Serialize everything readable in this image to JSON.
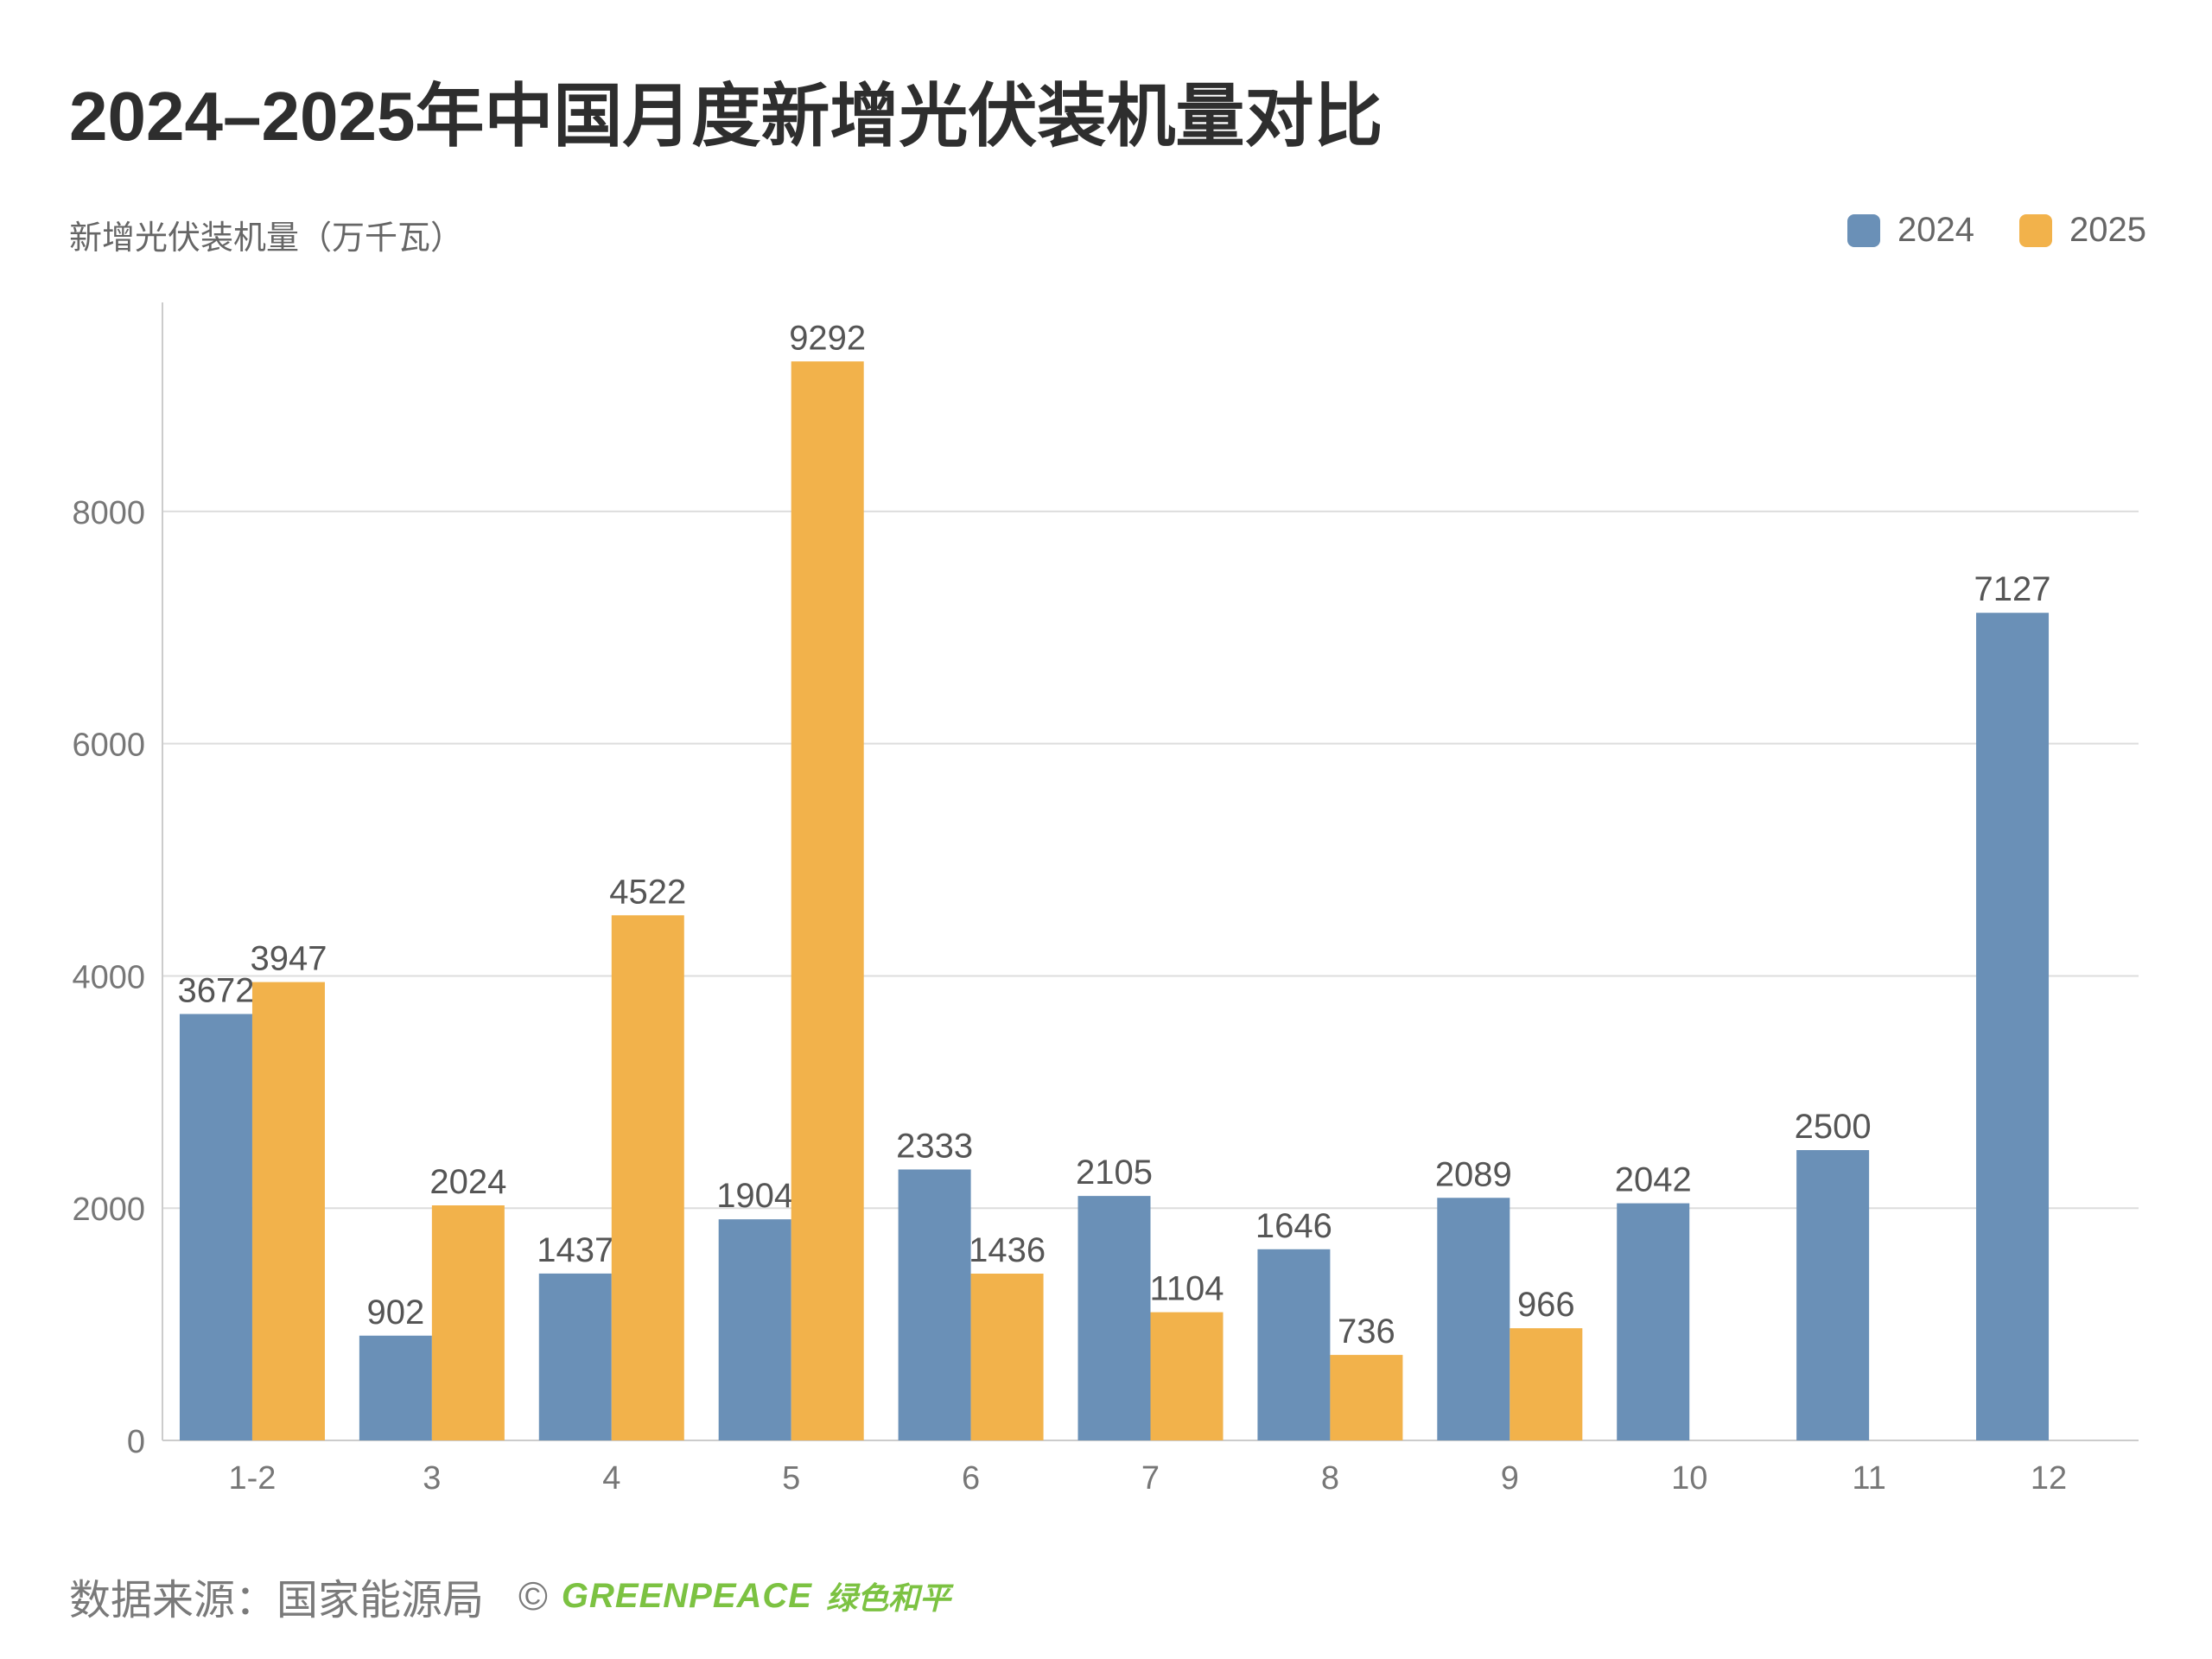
{
  "title": "2024–2025年中国月度新增光伏装机量对比",
  "footer": {
    "source": "数据来源：国家能源局",
    "copyright_symbol": "©",
    "brand_name": "GREENPEACE",
    "brand_cn": "绿色和平"
  },
  "colors": {
    "series_2024": "#6a90b7",
    "series_2025": "#f2b24b",
    "grid": "#dddddd",
    "axis": "#cccccc"
  },
  "chart_data": {
    "type": "bar",
    "title": "2024–2025年中国月度新增光伏装机量对比",
    "ylabel": "新增光伏装机量（万千瓦）",
    "xlabel": "",
    "ylim": [
      0,
      9800
    ],
    "yticks": [
      0,
      2000,
      4000,
      6000,
      8000
    ],
    "grid": true,
    "legend_position": "top-right",
    "categories": [
      "1-2",
      "3",
      "4",
      "5",
      "6",
      "7",
      "8",
      "9",
      "10",
      "11",
      "12"
    ],
    "series": [
      {
        "name": "2024",
        "values": [
          3672,
          902,
          1437,
          1904,
          2333,
          2105,
          1646,
          2089,
          2042,
          2500,
          7127
        ]
      },
      {
        "name": "2025",
        "values": [
          3947,
          2024,
          4522,
          9292,
          1436,
          1104,
          736,
          966,
          null,
          null,
          null
        ]
      }
    ]
  }
}
